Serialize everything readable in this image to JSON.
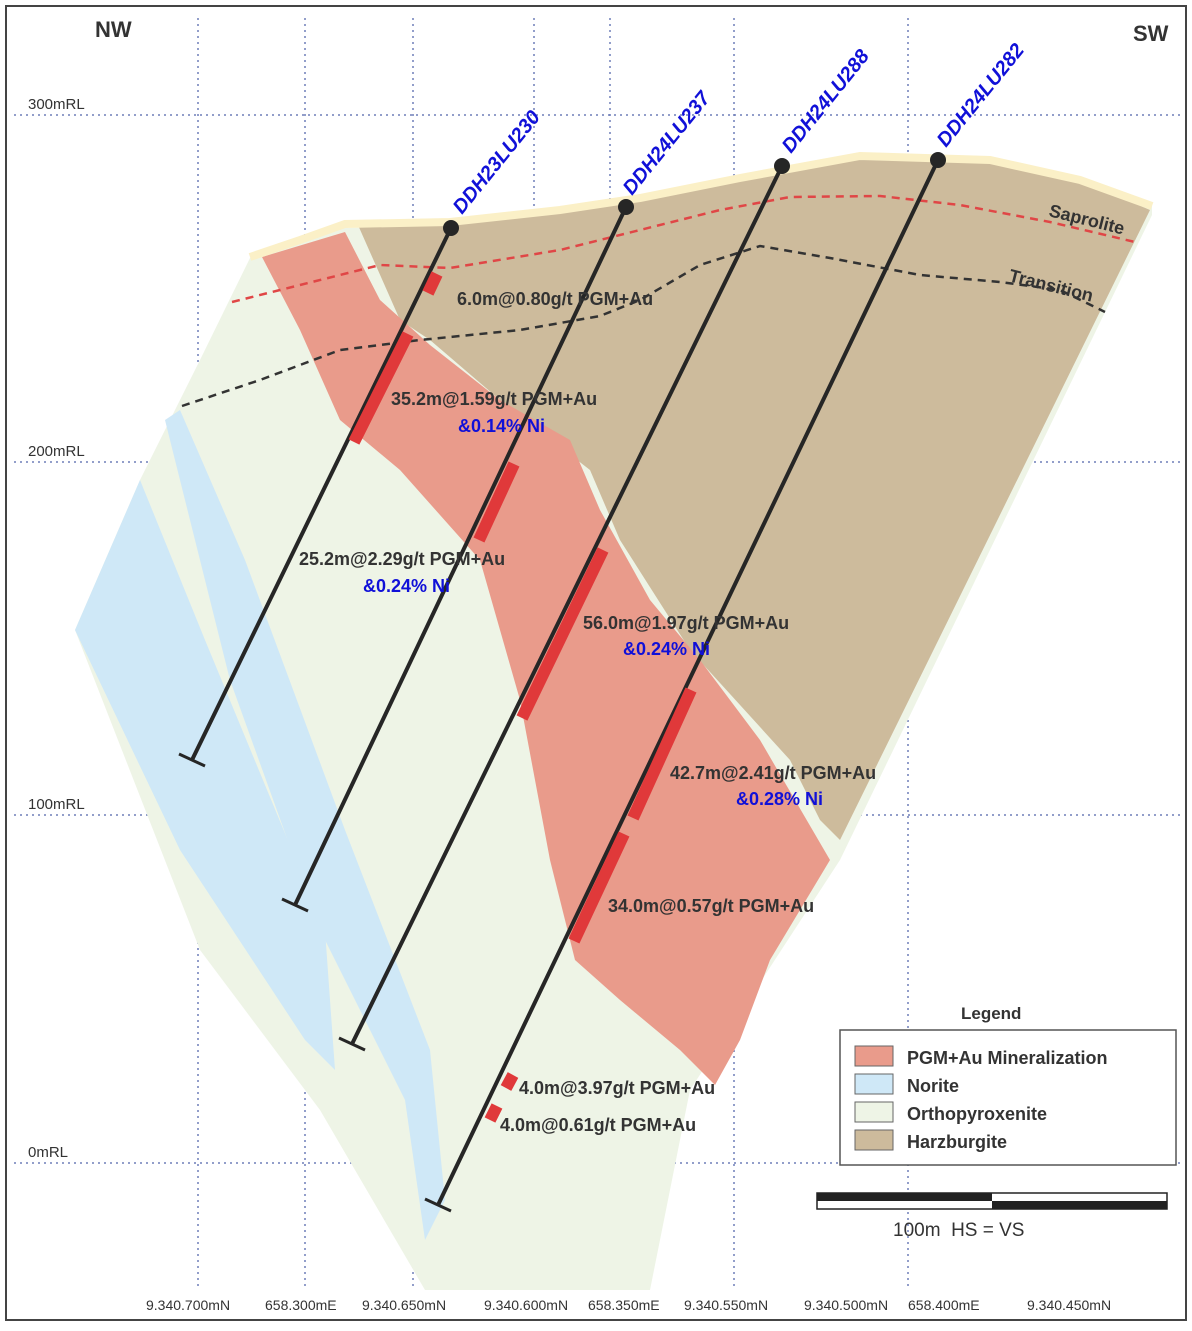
{
  "section": {
    "corner_left": "NW",
    "corner_right": "SW",
    "elevation_labels": [
      "300mRL",
      "200mRL",
      "100mRL",
      "0mRL"
    ],
    "grid_labels": [
      "9.340.700mN",
      "658.300mE",
      "9.340.650mN",
      "9.340.600mN",
      "658.350mE",
      "9.340.550mN",
      "9.340.500mN",
      "658.400mE",
      "9.340.450mN"
    ],
    "zone_labels": {
      "saprolite": "Saprolite",
      "transition": "Transition"
    }
  },
  "drillholes": [
    {
      "id": "DDH23LU230"
    },
    {
      "id": "DDH24LU237"
    },
    {
      "id": "DDH24LU288"
    },
    {
      "id": "DDH24LU282"
    }
  ],
  "intercepts": [
    {
      "text": "6.0m@0.80g/t PGM+Au",
      "ni": ""
    },
    {
      "text": "35.2m@1.59g/t PGM+Au",
      "ni": "&0.14% Ni"
    },
    {
      "text": "25.2m@2.29g/t PGM+Au",
      "ni": "&0.24% Ni"
    },
    {
      "text": "56.0m@1.97g/t PGM+Au",
      "ni": "&0.24% Ni"
    },
    {
      "text": "42.7m@2.41g/t PGM+Au",
      "ni": "&0.28% Ni"
    },
    {
      "text": "34.0m@0.57g/t PGM+Au",
      "ni": ""
    },
    {
      "text": "4.0m@3.97g/t PGM+Au",
      "ni": ""
    },
    {
      "text": "4.0m@0.61g/t PGM+Au",
      "ni": ""
    }
  ],
  "legend": {
    "title": "Legend",
    "items": [
      {
        "label": "PGM+Au Mineralization",
        "color": "#e99b8b"
      },
      {
        "label": "Norite",
        "color": "#cfe8f7"
      },
      {
        "label": "Orthopyroxenite",
        "color": "#eef4e6"
      },
      {
        "label": "Harzburgite",
        "color": "#cdbb9c"
      }
    ]
  },
  "scale": {
    "label": "100m  HS = VS"
  },
  "colors": {
    "mineralization": "#e99b8b",
    "norite": "#cfe8f7",
    "orthopyroxenite": "#eef4e6",
    "harzburgite": "#cdbb9c",
    "surface": "#fbf0c7",
    "intercept": "#e0393a",
    "hole_label": "#1010d8",
    "saprolite_line": "#e04646",
    "transition_line": "#333333"
  }
}
